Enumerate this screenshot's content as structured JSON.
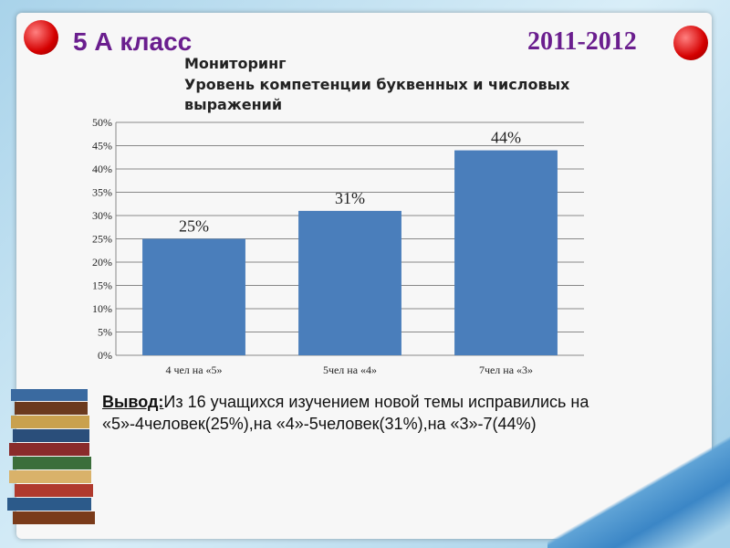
{
  "slide": {
    "class_label": "5 А класс",
    "year": "2011-2012",
    "conclusion_label": "Вывод:",
    "conclusion_text": "Из 16 учащихся изучением новой темы исправились на «5»-4человек(25%),на «4»-5человек(31%),на «3»-7(44%)"
  },
  "chart_data": {
    "type": "bar",
    "title": "Мониторинг",
    "subtitle": "Уровень компетенции буквенных и числовых выражений",
    "categories": [
      "4 чел на «5»",
      "5чел на «4»",
      "7чел на «3»"
    ],
    "values": [
      25,
      31,
      44
    ],
    "value_labels": [
      "25%",
      "31%",
      "44%"
    ],
    "color": "#4a7ebb",
    "ylim": [
      0,
      50
    ],
    "yticks": [
      {
        "value": 0,
        "label": "0%"
      },
      {
        "value": 5,
        "label": "5%"
      },
      {
        "value": 10,
        "label": "10%"
      },
      {
        "value": 15,
        "label": "15%"
      },
      {
        "value": 20,
        "label": "20%"
      },
      {
        "value": 25,
        "label": "25%"
      },
      {
        "value": 30,
        "label": "30%"
      },
      {
        "value": 35,
        "label": "35%"
      },
      {
        "value": 40,
        "label": "40%"
      },
      {
        "value": 45,
        "label": "45%"
      },
      {
        "value": 50,
        "label": "50%"
      }
    ],
    "grid": true
  }
}
